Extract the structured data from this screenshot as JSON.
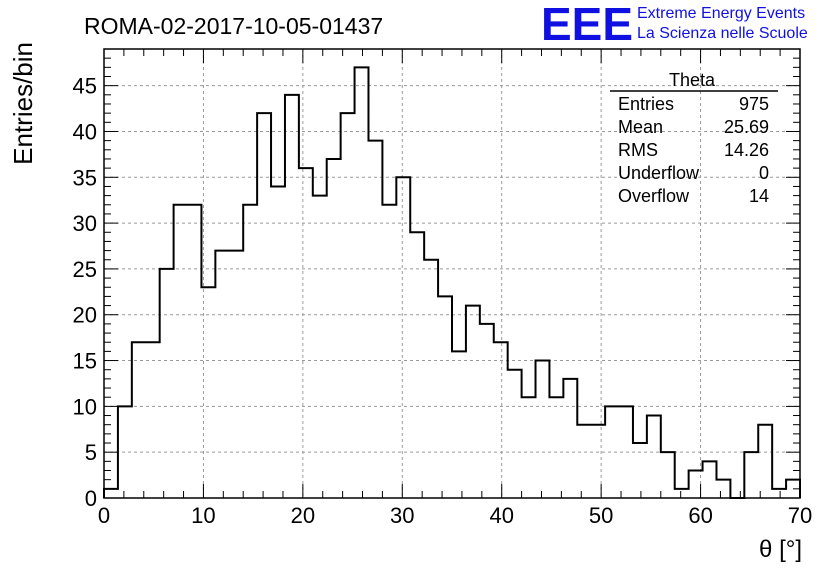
{
  "header": {
    "title": "ROMA-02-2017-10-05-01437",
    "logo_text": "EEE",
    "logo_line1": "Extreme Energy Events",
    "logo_line2": "La Scienza nelle Scuole"
  },
  "colors": {
    "logo": "#1010e0",
    "histogram": "#000000",
    "grid": "#9a9a9a",
    "background": "#ffffff"
  },
  "stats": {
    "name": "Theta",
    "rows": [
      {
        "label": "Entries",
        "value": "975"
      },
      {
        "label": "Mean",
        "value": "25.69"
      },
      {
        "label": "RMS",
        "value": "14.26"
      },
      {
        "label": "Underflow",
        "value": "0"
      },
      {
        "label": "Overflow",
        "value": "14"
      }
    ]
  },
  "chart_data": {
    "type": "bar",
    "style": "step-histogram",
    "xlabel": "θ [°]",
    "ylabel": "Entries/bin",
    "xlim": [
      0,
      70
    ],
    "ylim": [
      0,
      49
    ],
    "bin_width": 1.4,
    "x_ticks": [
      0,
      10,
      20,
      30,
      40,
      50,
      60,
      70
    ],
    "y_ticks": [
      0,
      5,
      10,
      15,
      20,
      25,
      30,
      35,
      40,
      45
    ],
    "grid": true,
    "values": [
      1,
      10,
      17,
      17,
      25,
      32,
      32,
      23,
      27,
      27,
      32,
      42,
      34,
      44,
      36,
      33,
      37,
      42,
      47,
      39,
      32,
      35,
      29,
      26,
      22,
      16,
      21,
      19,
      17,
      14,
      11,
      15,
      11,
      13,
      8,
      8,
      10,
      10,
      6,
      9,
      5,
      1,
      3,
      4,
      2,
      0,
      5,
      8,
      1,
      2
    ]
  }
}
